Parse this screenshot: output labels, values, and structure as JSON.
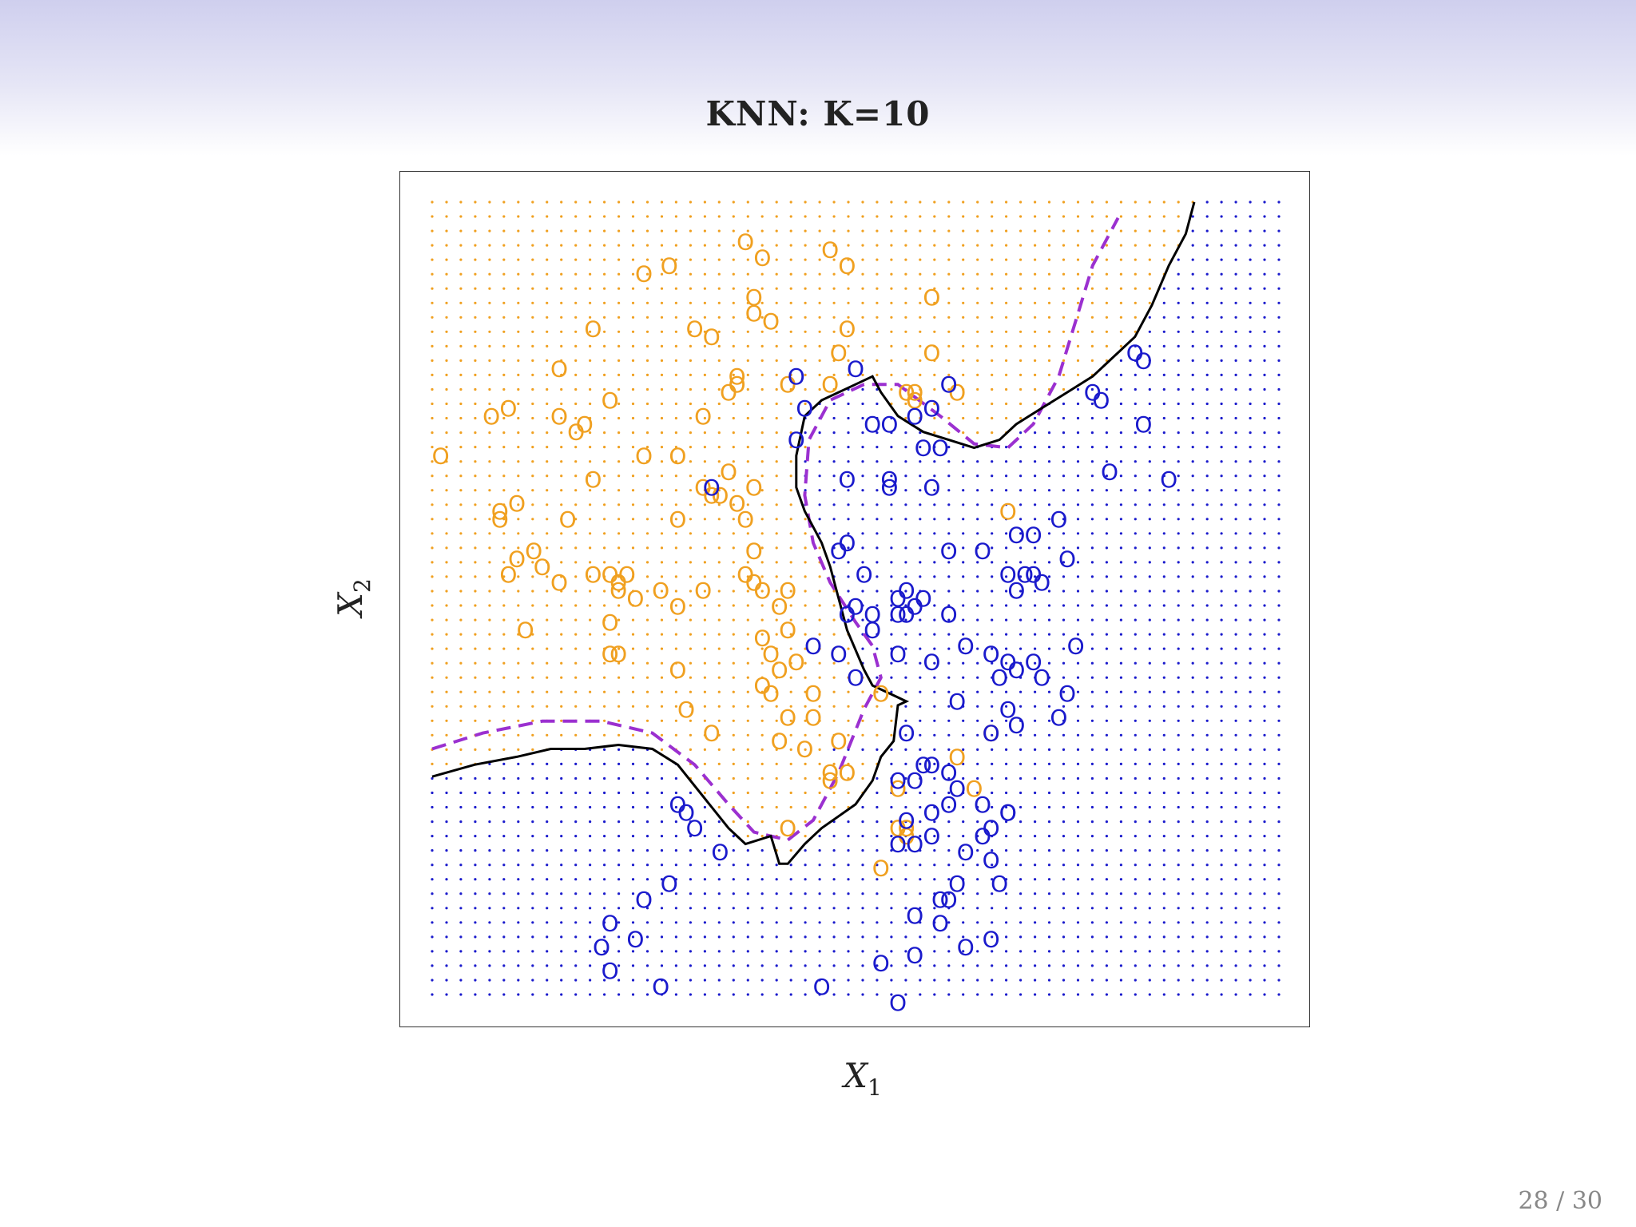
{
  "slide": {
    "title": "KNN: K=10",
    "page_number": "28 / 30"
  },
  "colors": {
    "class_orange": "#f0a020",
    "class_blue": "#1a1acc",
    "knn_boundary": "#000000",
    "bayes_boundary": "#9b30d0"
  },
  "chart_data": {
    "type": "scatter",
    "title": "KNN: K=10",
    "xlabel_main": "X",
    "xlabel_sub": "1",
    "ylabel_main": "X",
    "ylabel_sub": "2",
    "marker": "O",
    "xlim": [
      0,
      1
    ],
    "ylim": [
      0,
      1
    ],
    "grid_dots": {
      "nx": 60,
      "ny": 56
    },
    "series": [
      {
        "color": "#f0a020",
        "points": [
          [
            0.25,
            0.91
          ],
          [
            0.28,
            0.92
          ],
          [
            0.37,
            0.95
          ],
          [
            0.39,
            0.93
          ],
          [
            0.47,
            0.94
          ],
          [
            0.49,
            0.92
          ],
          [
            0.38,
            0.88
          ],
          [
            0.38,
            0.86
          ],
          [
            0.4,
            0.85
          ],
          [
            0.19,
            0.84
          ],
          [
            0.31,
            0.84
          ],
          [
            0.33,
            0.83
          ],
          [
            0.49,
            0.84
          ],
          [
            0.59,
            0.88
          ],
          [
            0.59,
            0.81
          ],
          [
            0.48,
            0.81
          ],
          [
            0.15,
            0.79
          ],
          [
            0.36,
            0.78
          ],
          [
            0.36,
            0.77
          ],
          [
            0.42,
            0.77
          ],
          [
            0.47,
            0.77
          ],
          [
            0.21,
            0.75
          ],
          [
            0.35,
            0.76
          ],
          [
            0.56,
            0.76
          ],
          [
            0.57,
            0.76
          ],
          [
            0.62,
            0.76
          ],
          [
            0.57,
            0.75
          ],
          [
            0.07,
            0.73
          ],
          [
            0.09,
            0.74
          ],
          [
            0.15,
            0.73
          ],
          [
            0.18,
            0.72
          ],
          [
            0.32,
            0.73
          ],
          [
            0.17,
            0.71
          ],
          [
            0.01,
            0.68
          ],
          [
            0.25,
            0.68
          ],
          [
            0.29,
            0.68
          ],
          [
            0.19,
            0.65
          ],
          [
            0.32,
            0.64
          ],
          [
            0.35,
            0.66
          ],
          [
            0.38,
            0.64
          ],
          [
            0.33,
            0.63
          ],
          [
            0.34,
            0.63
          ],
          [
            0.36,
            0.62
          ],
          [
            0.08,
            0.61
          ],
          [
            0.08,
            0.6
          ],
          [
            0.1,
            0.62
          ],
          [
            0.16,
            0.6
          ],
          [
            0.29,
            0.6
          ],
          [
            0.37,
            0.6
          ],
          [
            0.68,
            0.61
          ],
          [
            0.1,
            0.55
          ],
          [
            0.13,
            0.54
          ],
          [
            0.12,
            0.56
          ],
          [
            0.19,
            0.53
          ],
          [
            0.21,
            0.53
          ],
          [
            0.23,
            0.53
          ],
          [
            0.38,
            0.56
          ],
          [
            0.37,
            0.53
          ],
          [
            0.38,
            0.52
          ],
          [
            0.09,
            0.53
          ],
          [
            0.15,
            0.52
          ],
          [
            0.22,
            0.52
          ],
          [
            0.22,
            0.51
          ],
          [
            0.27,
            0.51
          ],
          [
            0.32,
            0.51
          ],
          [
            0.39,
            0.51
          ],
          [
            0.42,
            0.51
          ],
          [
            0.24,
            0.5
          ],
          [
            0.29,
            0.49
          ],
          [
            0.41,
            0.49
          ],
          [
            0.21,
            0.47
          ],
          [
            0.42,
            0.46
          ],
          [
            0.11,
            0.46
          ],
          [
            0.39,
            0.45
          ],
          [
            0.4,
            0.43
          ],
          [
            0.43,
            0.42
          ],
          [
            0.21,
            0.43
          ],
          [
            0.22,
            0.43
          ],
          [
            0.29,
            0.41
          ],
          [
            0.41,
            0.41
          ],
          [
            0.39,
            0.39
          ],
          [
            0.45,
            0.38
          ],
          [
            0.4,
            0.38
          ],
          [
            0.53,
            0.38
          ],
          [
            0.45,
            0.35
          ],
          [
            0.3,
            0.36
          ],
          [
            0.33,
            0.33
          ],
          [
            0.42,
            0.35
          ],
          [
            0.41,
            0.32
          ],
          [
            0.66,
            0.33
          ],
          [
            0.48,
            0.32
          ],
          [
            0.62,
            0.3
          ],
          [
            0.47,
            0.28
          ],
          [
            0.55,
            0.26
          ],
          [
            0.42,
            0.21
          ],
          [
            0.56,
            0.21
          ],
          [
            0.56,
            0.2
          ],
          [
            0.49,
            0.28
          ],
          [
            0.53,
            0.16
          ],
          [
            0.55,
            0.21
          ],
          [
            0.44,
            0.31
          ],
          [
            0.64,
            0.26
          ],
          [
            0.47,
            0.27
          ]
        ]
      },
      {
        "color": "#1a1acc",
        "points": [
          [
            0.43,
            0.78
          ],
          [
            0.5,
            0.79
          ],
          [
            0.61,
            0.77
          ],
          [
            0.59,
            0.74
          ],
          [
            0.44,
            0.74
          ],
          [
            0.43,
            0.7
          ],
          [
            0.52,
            0.72
          ],
          [
            0.54,
            0.72
          ],
          [
            0.57,
            0.73
          ],
          [
            0.6,
            0.69
          ],
          [
            0.49,
            0.65
          ],
          [
            0.54,
            0.65
          ],
          [
            0.54,
            0.64
          ],
          [
            0.59,
            0.64
          ],
          [
            0.58,
            0.69
          ],
          [
            0.33,
            0.64
          ],
          [
            0.61,
            0.56
          ],
          [
            0.65,
            0.56
          ],
          [
            0.68,
            0.53
          ],
          [
            0.71,
            0.53
          ],
          [
            0.7,
            0.53
          ],
          [
            0.72,
            0.52
          ],
          [
            0.69,
            0.51
          ],
          [
            0.75,
            0.55
          ],
          [
            0.51,
            0.53
          ],
          [
            0.56,
            0.51
          ],
          [
            0.48,
            0.56
          ],
          [
            0.49,
            0.57
          ],
          [
            0.49,
            0.48
          ],
          [
            0.55,
            0.48
          ],
          [
            0.56,
            0.48
          ],
          [
            0.57,
            0.49
          ],
          [
            0.55,
            0.5
          ],
          [
            0.58,
            0.5
          ],
          [
            0.52,
            0.48
          ],
          [
            0.5,
            0.49
          ],
          [
            0.61,
            0.48
          ],
          [
            0.52,
            0.46
          ],
          [
            0.45,
            0.44
          ],
          [
            0.48,
            0.43
          ],
          [
            0.55,
            0.43
          ],
          [
            0.63,
            0.44
          ],
          [
            0.66,
            0.43
          ],
          [
            0.68,
            0.42
          ],
          [
            0.69,
            0.41
          ],
          [
            0.71,
            0.42
          ],
          [
            0.59,
            0.42
          ],
          [
            0.5,
            0.4
          ],
          [
            0.67,
            0.4
          ],
          [
            0.72,
            0.4
          ],
          [
            0.62,
            0.37
          ],
          [
            0.68,
            0.36
          ],
          [
            0.74,
            0.35
          ],
          [
            0.69,
            0.34
          ],
          [
            0.66,
            0.33
          ],
          [
            0.56,
            0.33
          ],
          [
            0.58,
            0.29
          ],
          [
            0.59,
            0.29
          ],
          [
            0.61,
            0.28
          ],
          [
            0.55,
            0.27
          ],
          [
            0.57,
            0.27
          ],
          [
            0.62,
            0.26
          ],
          [
            0.65,
            0.24
          ],
          [
            0.59,
            0.23
          ],
          [
            0.61,
            0.24
          ],
          [
            0.68,
            0.23
          ],
          [
            0.68,
            0.23
          ],
          [
            0.56,
            0.22
          ],
          [
            0.66,
            0.21
          ],
          [
            0.65,
            0.2
          ],
          [
            0.59,
            0.2
          ],
          [
            0.57,
            0.19
          ],
          [
            0.55,
            0.19
          ],
          [
            0.63,
            0.18
          ],
          [
            0.66,
            0.17
          ],
          [
            0.67,
            0.14
          ],
          [
            0.62,
            0.14
          ],
          [
            0.61,
            0.12
          ],
          [
            0.6,
            0.12
          ],
          [
            0.57,
            0.1
          ],
          [
            0.6,
            0.09
          ],
          [
            0.66,
            0.07
          ],
          [
            0.63,
            0.06
          ],
          [
            0.57,
            0.05
          ],
          [
            0.53,
            0.04
          ],
          [
            0.46,
            0.01
          ],
          [
            0.29,
            0.24
          ],
          [
            0.3,
            0.23
          ],
          [
            0.31,
            0.21
          ],
          [
            0.34,
            0.18
          ],
          [
            0.28,
            0.14
          ],
          [
            0.25,
            0.12
          ],
          [
            0.21,
            0.09
          ],
          [
            0.24,
            0.07
          ],
          [
            0.2,
            0.06
          ],
          [
            0.21,
            0.03
          ],
          [
            0.27,
            0.01
          ],
          [
            0.55,
            -0.01
          ],
          [
            0.83,
            0.81
          ],
          [
            0.84,
            0.8
          ],
          [
            0.78,
            0.76
          ],
          [
            0.79,
            0.75
          ],
          [
            0.84,
            0.72
          ],
          [
            0.8,
            0.66
          ],
          [
            0.87,
            0.65
          ],
          [
            0.74,
            0.6
          ],
          [
            0.71,
            0.58
          ],
          [
            0.69,
            0.58
          ],
          [
            0.76,
            0.44
          ],
          [
            0.75,
            0.38
          ]
        ]
      }
    ]
  }
}
